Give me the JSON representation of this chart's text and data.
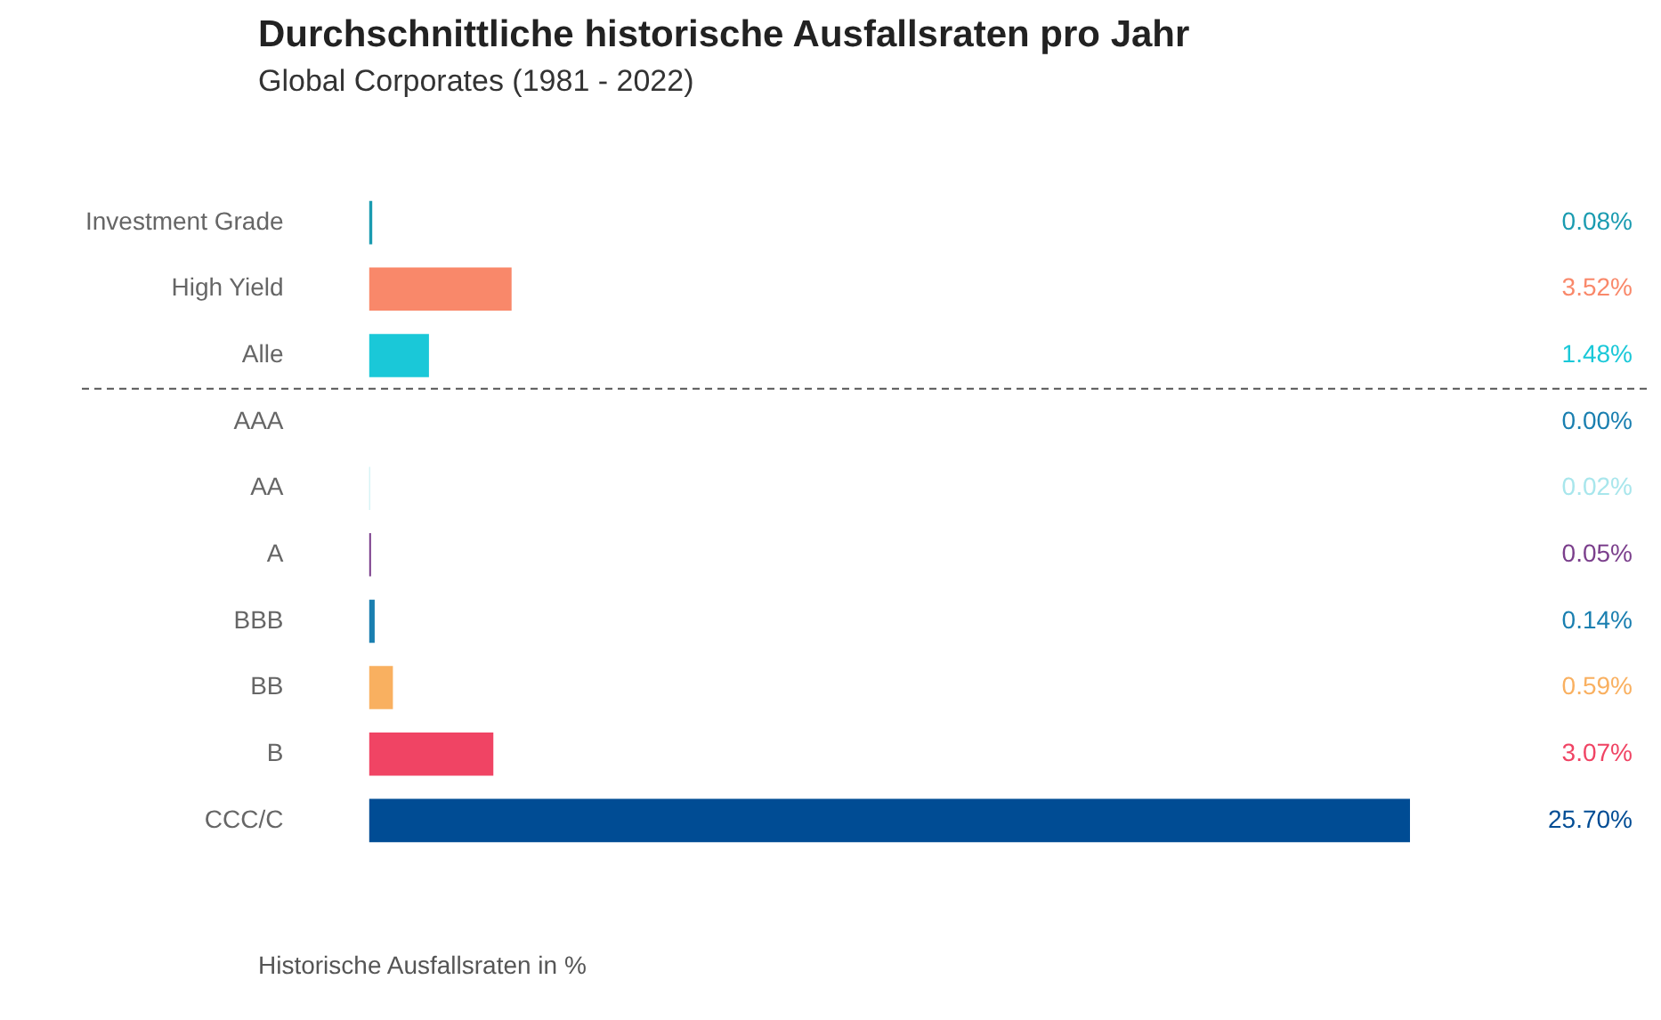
{
  "chart_data": {
    "type": "bar",
    "orientation": "horizontal",
    "title": "Durchschnittliche historische Ausfallsraten pro Jahr",
    "subtitle": "Global Corporates (1981 - 2022)",
    "xlabel": "Historische Ausfallsraten in %",
    "categories": [
      "Investment Grade",
      "High Yield",
      "Alle",
      "AAA",
      "AA",
      "A",
      "BBB",
      "BB",
      "B",
      "CCC/C"
    ],
    "values": [
      0.08,
      3.52,
      1.48,
      0.0,
      0.02,
      0.05,
      0.14,
      0.59,
      3.07,
      25.7
    ],
    "colors": [
      "#1a9bb0",
      "#f9886a",
      "#1ac8d8",
      "#1a7fb0",
      "#a8e6ec",
      "#7b3f8c",
      "#1a7fb0",
      "#f9b060",
      "#f04464",
      "#004c94"
    ],
    "value_labels": [
      "0.08%",
      "3.52%",
      "1.48%",
      "0.00%",
      "0.02%",
      "0.05%",
      "0.14%",
      "0.59%",
      "3.07%",
      "25.70%"
    ],
    "grid": false,
    "legend": false
  }
}
